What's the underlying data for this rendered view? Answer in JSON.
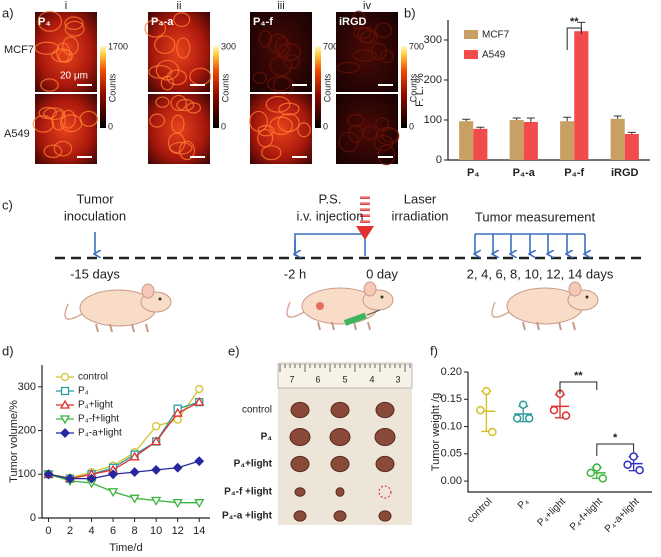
{
  "panel_labels": [
    "a)",
    "b)",
    "c)",
    "d)",
    "e)",
    "f)"
  ],
  "panel_a": {
    "columns": [
      "i",
      "ii",
      "iii",
      "iv"
    ],
    "images": [
      "P₄",
      "P₄-a",
      "P₄-f",
      "iRGD"
    ],
    "rows": [
      "MCF7",
      "A549"
    ],
    "scale_bar": "20 μm",
    "colorbar_title": "Counts",
    "colorbar_max": [
      1700,
      300,
      700,
      700
    ],
    "colorbar_min": [
      0,
      0,
      0,
      0
    ]
  },
  "panel_c": {
    "events": [
      {
        "label": [
          "Tumor",
          "inoculation"
        ],
        "time": "-15 days"
      },
      {
        "label": [
          "P.S.",
          "i.v. injection"
        ],
        "time": "-2 h"
      },
      {
        "label": [
          "Laser",
          "irradiation"
        ],
        "time": "0 day"
      },
      {
        "label": [
          "Tumor measurement"
        ],
        "time": "2, 4, 6, 8, 10, 12, 14 days"
      }
    ]
  },
  "panel_e": {
    "ruler": [
      7,
      6,
      5,
      4,
      3
    ],
    "rows": [
      "control",
      "P₄",
      "P₄+light",
      "P₄-f +light",
      "P₄-a +light"
    ]
  },
  "chart_data": [
    {
      "type": "bar",
      "ylabel": "F. L. %",
      "categories": [
        "P₄",
        "P₄-a",
        "P₄-f",
        "iRGD"
      ],
      "series": [
        {
          "name": "MCF7",
          "color": "#c9a063",
          "values": [
            97,
            100,
            97,
            103
          ],
          "errors": [
            5,
            5,
            10,
            7
          ]
        },
        {
          "name": "A549",
          "color": "#f24b4b",
          "values": [
            78,
            95,
            322,
            65
          ],
          "errors": [
            4,
            10,
            22,
            4
          ]
        }
      ],
      "ylim": [
        0,
        350
      ],
      "yticks": [
        0,
        100,
        200,
        300
      ],
      "annotations": [
        "**"
      ],
      "legend": "upper-left"
    },
    {
      "type": "line",
      "xlabel": "Time/d",
      "ylabel": "Tumor volume/%",
      "x": [
        0,
        2,
        4,
        6,
        8,
        10,
        12,
        14
      ],
      "series": [
        {
          "name": "control",
          "color": "#d2c42e",
          "marker": "circle",
          "values": [
            100,
            92,
            105,
            120,
            150,
            210,
            225,
            295
          ]
        },
        {
          "name": "P₄",
          "color": "#2a9d9d",
          "marker": "square",
          "values": [
            100,
            90,
            100,
            115,
            145,
            175,
            250,
            265
          ]
        },
        {
          "name": "P₄+light",
          "color": "#e03030",
          "marker": "triangle",
          "values": [
            100,
            90,
            100,
            110,
            140,
            175,
            240,
            265
          ]
        },
        {
          "name": "P₄-f+light",
          "color": "#3cb53c",
          "marker": "triangle-down",
          "values": [
            100,
            85,
            80,
            60,
            45,
            40,
            35,
            35
          ]
        },
        {
          "name": "P₄-a+light",
          "color": "#27279e",
          "marker": "diamond",
          "values": [
            100,
            90,
            90,
            100,
            105,
            110,
            115,
            130
          ]
        }
      ],
      "xlim": [
        -0.6,
        15
      ],
      "ylim": [
        0,
        350
      ],
      "xticks": [
        0,
        2,
        4,
        6,
        8,
        10,
        12,
        14
      ],
      "yticks": [
        0,
        100,
        200,
        300
      ],
      "legend": "upper-left"
    },
    {
      "type": "dot",
      "ylabel": "Tumor weight /g",
      "categories": [
        "control",
        "P₄",
        "P₄+light",
        "P₄-f+light",
        "P₄-a+light"
      ],
      "colors": [
        "#d2c020",
        "#2a9d9d",
        "#e03030",
        "#3cb53c",
        "#3030c0"
      ],
      "points": [
        [
          0.165,
          0.13,
          0.09
        ],
        [
          0.14,
          0.115,
          0.115
        ],
        [
          0.16,
          0.13,
          0.12
        ],
        [
          0.025,
          0.015,
          0.005
        ],
        [
          0.045,
          0.03,
          0.02
        ]
      ],
      "means": [
        0.128,
        0.123,
        0.137,
        0.015,
        0.032
      ],
      "sd": [
        0.037,
        0.014,
        0.021,
        0.01,
        0.013
      ],
      "ylim": [
        -0.02,
        0.2
      ],
      "yticks": [
        {
          "value": 0,
          "label": "0.00"
        },
        {
          "value": 0.05,
          "label": "0.05"
        },
        {
          "value": 0.1,
          "label": "0.10"
        },
        {
          "value": 0.15,
          "label": "0.15"
        },
        {
          "value": 0.2,
          "label": "0.20"
        }
      ],
      "annotations": [
        "**",
        "*"
      ]
    }
  ]
}
